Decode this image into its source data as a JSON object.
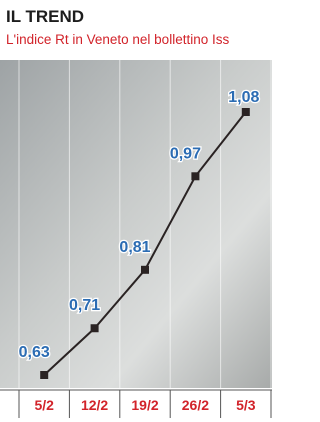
{
  "chart_data": {
    "type": "line",
    "title": "IL TREND",
    "subtitle": "L'indice Rt in Veneto nel bollettino Iss",
    "categories": [
      "5/2",
      "12/2",
      "19/2",
      "26/2",
      "5/3"
    ],
    "values": [
      0.63,
      0.71,
      0.81,
      0.97,
      1.08
    ],
    "value_labels": [
      "0,63",
      "0,71",
      "0,81",
      "0,97",
      "1,08"
    ],
    "color": "#2a2323",
    "label_color": "#2b6cb3",
    "axis_label_color": "#d2232a"
  }
}
